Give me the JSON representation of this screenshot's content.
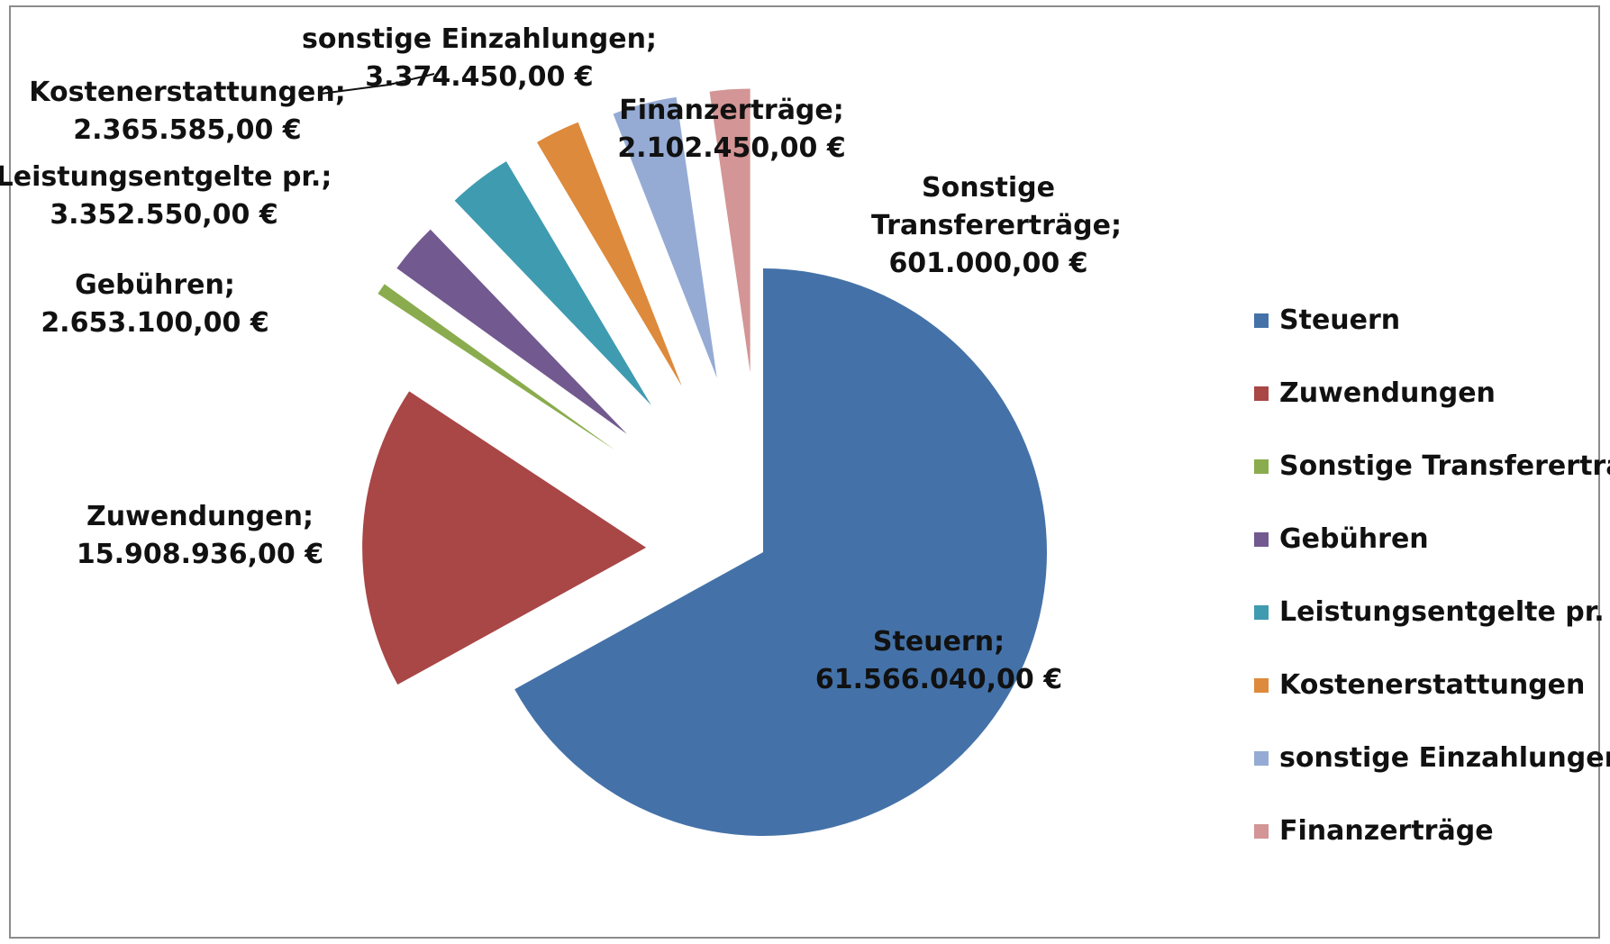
{
  "chart_data": {
    "type": "pie",
    "title": "",
    "legend_position": "right",
    "slices": [
      {
        "name": "Steuern",
        "value": 61566040,
        "label_name": "Steuern;",
        "label_value": "61.566.040,00 €",
        "color": "#4472a8"
      },
      {
        "name": "Zuwendungen",
        "value": 15908936,
        "label_name": "Zuwendungen;",
        "label_value": "15.908.936,00 €",
        "color": "#a94646"
      },
      {
        "name": "Sonstige Transfererträge",
        "value": 601000,
        "label_name": "Sonstige Transfererträge;",
        "label_value": "601.000,00 €",
        "color": "#8aac4e"
      },
      {
        "name": "Gebühren",
        "value": 2653100,
        "label_name": "Gebühren;",
        "label_value": "2.653.100,00 €",
        "color": "#72598f"
      },
      {
        "name": "Leistungsentgelte pr.",
        "value": 3352550,
        "label_name": "Leistungsentgelte pr.;",
        "label_value": "3.352.550,00 €",
        "color": "#3f9bb0"
      },
      {
        "name": "Kostenerstattungen",
        "value": 2365585,
        "label_name": "Kostenerstattungen;",
        "label_value": "2.365.585,00 €",
        "color": "#dd8a3c"
      },
      {
        "name": "sonstige Einzahlungen",
        "value": 3374450,
        "label_name": "sonstige Einzahlungen;",
        "label_value": "3.374.450,00 €",
        "color": "#95abd4"
      },
      {
        "name": "Finanzerträge",
        "value": 2102450,
        "label_name": "Finanzerträge;",
        "label_value": "2.102.450,00 €",
        "color": "#d39595"
      }
    ]
  }
}
